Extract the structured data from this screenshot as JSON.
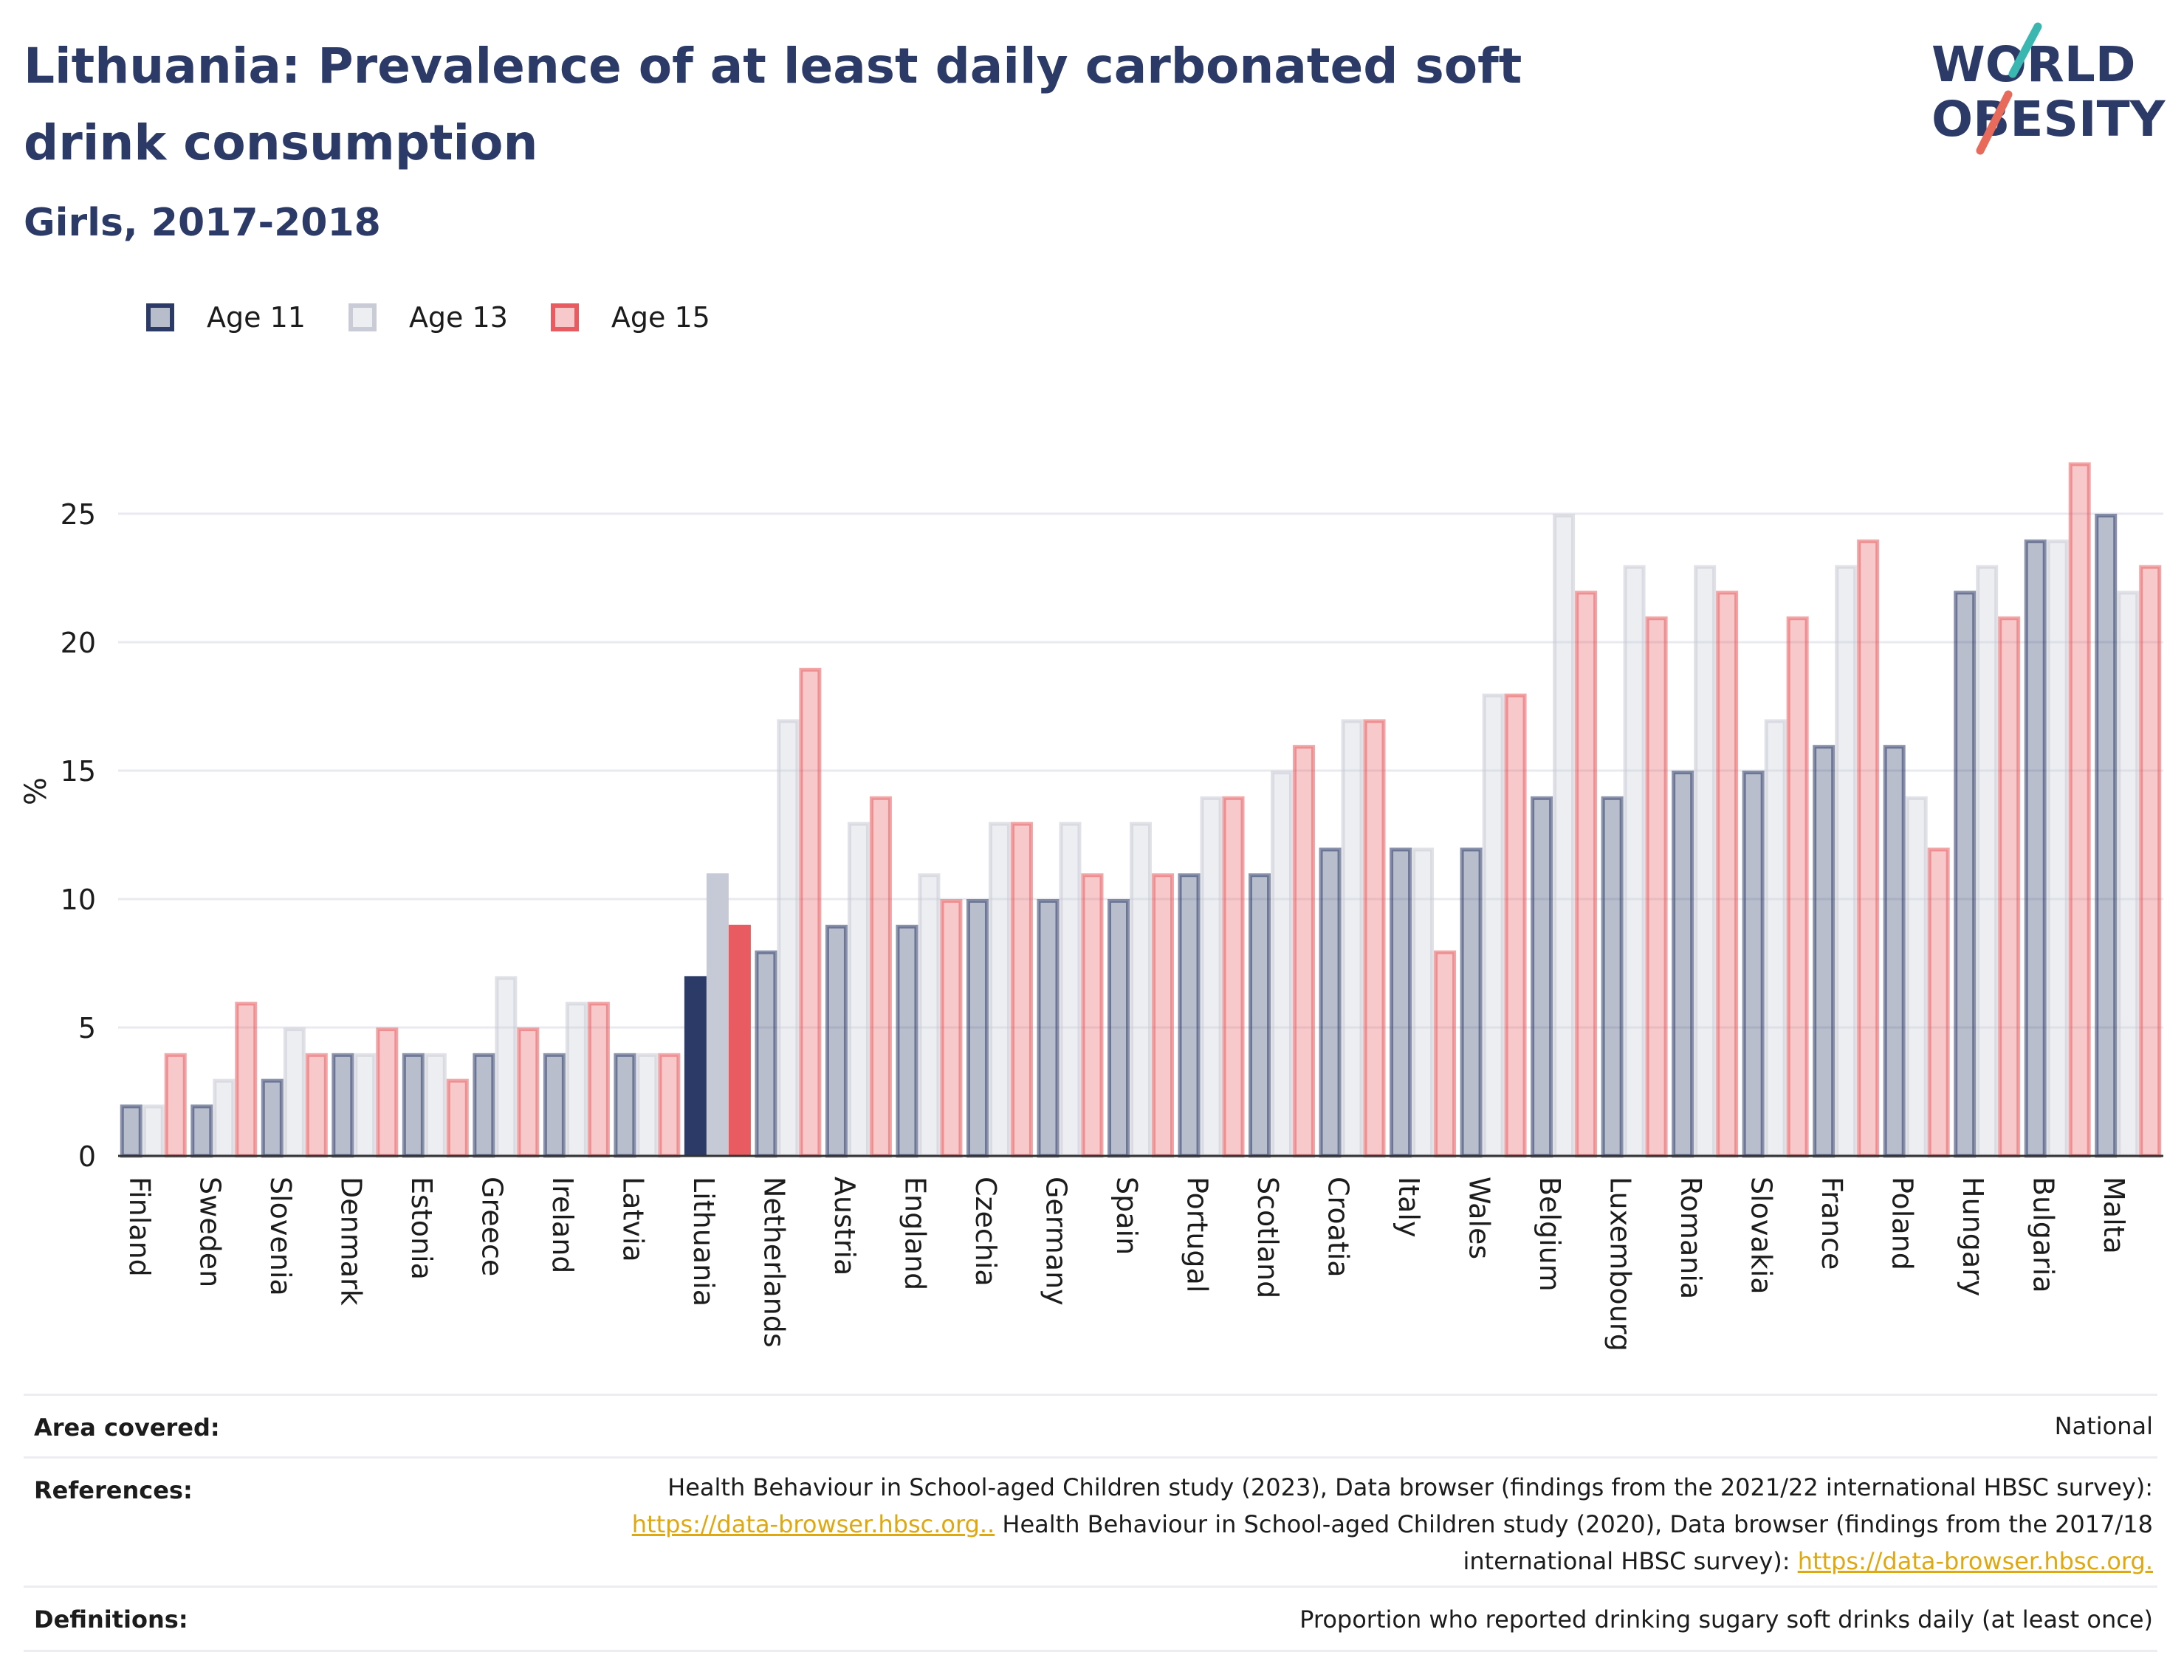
{
  "header": {
    "title": "Lithuania: Prevalence of at least daily carbonated soft drink consumption",
    "subtitle": "Girls, 2017-2018"
  },
  "logo": {
    "text_line1": "WORLD",
    "text_line2": "OBESITY"
  },
  "legend": [
    {
      "label": "Age 11",
      "color": "#2b3a67"
    },
    {
      "label": "Age 13",
      "color": "#c9cbd6"
    },
    {
      "label": "Age 15",
      "color": "#e85c61"
    }
  ],
  "colors": {
    "age11": "#2b3a67",
    "age13": "#c9cbd6",
    "age15": "#e85c61",
    "highlight_age11": "#2b3a67",
    "highlight_age13": "#c6c9d6",
    "highlight_age15": "#e85c61"
  },
  "chart_data": {
    "type": "bar",
    "title": "Lithuania: Prevalence of at least daily carbonated soft drink consumption",
    "subtitle": "Girls, 2017-2018",
    "ylabel": "%",
    "xlabel": "",
    "ylim": [
      0,
      28
    ],
    "yticks": [
      0,
      5,
      10,
      15,
      20,
      25
    ],
    "grid": true,
    "legend_position": "top-left",
    "highlight": "Lithuania",
    "categories": [
      "Finland",
      "Sweden",
      "Slovenia",
      "Denmark",
      "Estonia",
      "Greece",
      "Ireland",
      "Latvia",
      "Lithuania",
      "Netherlands",
      "Austria",
      "England",
      "Czechia",
      "Germany",
      "Spain",
      "Portugal",
      "Scotland",
      "Croatia",
      "Italy",
      "Wales",
      "Belgium",
      "Luxembourg",
      "Romania",
      "Slovakia",
      "France",
      "Poland",
      "Hungary",
      "Bulgaria",
      "Malta"
    ],
    "series": [
      {
        "name": "Age 11",
        "values": [
          2,
          2,
          3,
          4,
          4,
          4,
          4,
          4,
          7,
          8,
          9,
          9,
          10,
          10,
          10,
          11,
          11,
          12,
          12,
          12,
          14,
          14,
          15,
          15,
          16,
          16,
          22,
          24,
          25
        ]
      },
      {
        "name": "Age 13",
        "values": [
          2,
          3,
          5,
          4,
          4,
          7,
          6,
          4,
          11,
          17,
          13,
          11,
          13,
          13,
          13,
          14,
          15,
          17,
          12,
          18,
          25,
          23,
          23,
          17,
          23,
          14,
          23,
          24,
          22
        ]
      },
      {
        "name": "Age 15",
        "values": [
          4,
          6,
          4,
          5,
          3,
          5,
          6,
          4,
          9,
          19,
          14,
          10,
          13,
          11,
          11,
          14,
          16,
          17,
          8,
          18,
          22,
          21,
          22,
          21,
          24,
          12,
          21,
          27,
          23
        ]
      }
    ]
  },
  "meta": {
    "area_key": "Area covered:",
    "area_value": "National",
    "references_key": "References:",
    "ref_text1": "Health Behaviour in School-aged Children study (2023), Data browser (findings from the 2021/22 international HBSC survey):",
    "ref_link1": "https://data-browser.hbsc.org..",
    "ref_text2": " Health Behaviour in School-aged Children study (2020), Data browser (findings from the 2017/18",
    "ref_text3": "international HBSC survey): ",
    "ref_link2": "https://data-browser.hbsc.org.",
    "definitions_key": "Definitions:",
    "definitions_value": "Proportion who reported drinking sugary soft drinks daily (at least once)"
  }
}
